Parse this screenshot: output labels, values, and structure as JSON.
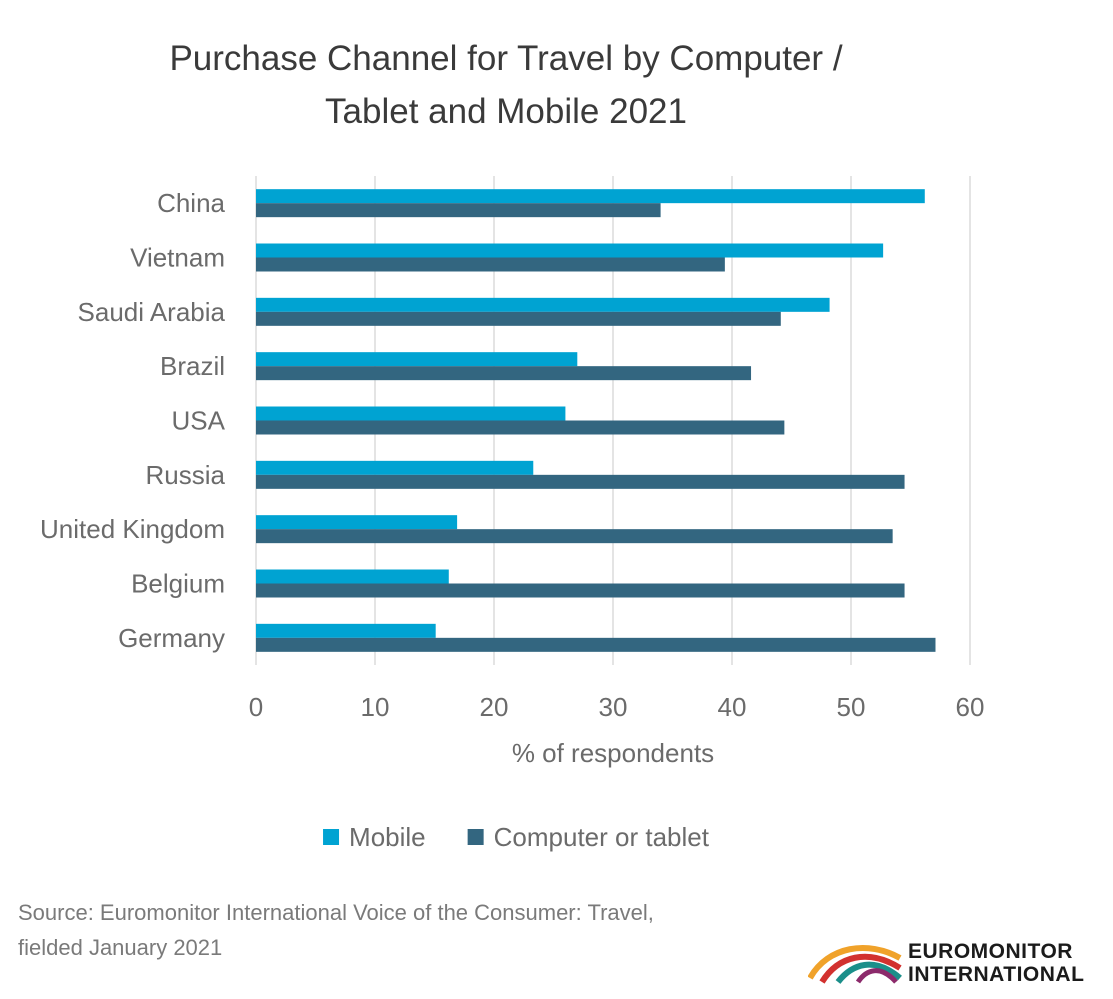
{
  "chart_data": {
    "type": "bar",
    "orientation": "horizontal",
    "title": [
      "Purchase Channel for Travel by Computer /",
      "Tablet and Mobile 2021"
    ],
    "categories": [
      "China",
      "Vietnam",
      "Saudi Arabia",
      "Brazil",
      "USA",
      "Russia",
      "United Kingdom",
      "Belgium",
      "Germany"
    ],
    "series": [
      {
        "name": "Mobile",
        "color": "#00a3d2",
        "values": [
          56.2,
          52.7,
          48.2,
          27.0,
          26.0,
          23.3,
          16.9,
          16.2,
          15.1
        ]
      },
      {
        "name": "Computer or tablet",
        "color": "#336680",
        "values": [
          34.0,
          39.4,
          44.1,
          41.6,
          44.4,
          54.5,
          53.5,
          54.5,
          57.1
        ]
      }
    ],
    "xlabel": "% of respondents",
    "ylabel": "",
    "xlim": [
      0,
      60
    ],
    "xticks": [
      "0",
      "10",
      "20",
      "30",
      "40",
      "50",
      "60"
    ],
    "grid": "vertical",
    "legend_position": "bottom"
  },
  "source": {
    "line1": "Source: Euromonitor International Voice of the Consumer: Travel,",
    "line2": "fielded January 2021"
  },
  "logo": {
    "line1": "EUROMONITOR",
    "line2": "INTERNATIONAL"
  }
}
